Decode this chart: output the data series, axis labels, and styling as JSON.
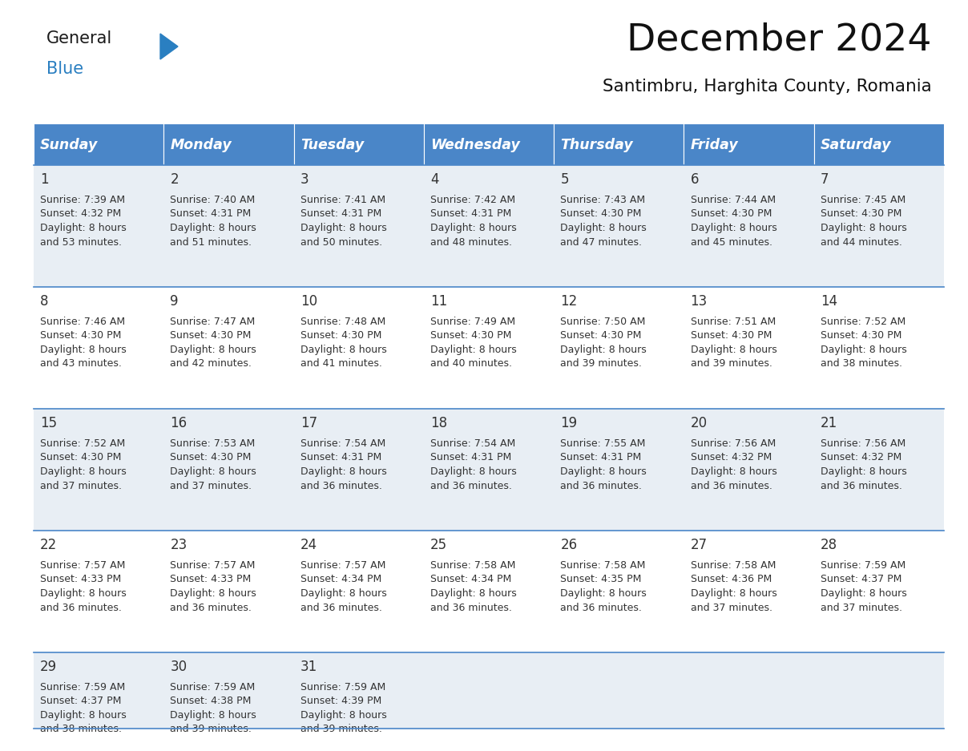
{
  "title": "December 2024",
  "subtitle": "Santimbru, Harghita County, Romania",
  "days_of_week": [
    "Sunday",
    "Monday",
    "Tuesday",
    "Wednesday",
    "Thursday",
    "Friday",
    "Saturday"
  ],
  "header_bg": "#4a86c8",
  "header_text": "#ffffff",
  "row_bg_odd": "#e8eef4",
  "row_bg_even": "#ffffff",
  "cell_border": "#4a86c8",
  "text_color": "#333333",
  "calendar_data": [
    [
      {
        "day": 1,
        "sunrise": "7:39 AM",
        "sunset": "4:32 PM",
        "daylight_hrs": "8 hours",
        "daylight_min": "and 53 minutes."
      },
      {
        "day": 2,
        "sunrise": "7:40 AM",
        "sunset": "4:31 PM",
        "daylight_hrs": "8 hours",
        "daylight_min": "and 51 minutes."
      },
      {
        "day": 3,
        "sunrise": "7:41 AM",
        "sunset": "4:31 PM",
        "daylight_hrs": "8 hours",
        "daylight_min": "and 50 minutes."
      },
      {
        "day": 4,
        "sunrise": "7:42 AM",
        "sunset": "4:31 PM",
        "daylight_hrs": "8 hours",
        "daylight_min": "and 48 minutes."
      },
      {
        "day": 5,
        "sunrise": "7:43 AM",
        "sunset": "4:30 PM",
        "daylight_hrs": "8 hours",
        "daylight_min": "and 47 minutes."
      },
      {
        "day": 6,
        "sunrise": "7:44 AM",
        "sunset": "4:30 PM",
        "daylight_hrs": "8 hours",
        "daylight_min": "and 45 minutes."
      },
      {
        "day": 7,
        "sunrise": "7:45 AM",
        "sunset": "4:30 PM",
        "daylight_hrs": "8 hours",
        "daylight_min": "and 44 minutes."
      }
    ],
    [
      {
        "day": 8,
        "sunrise": "7:46 AM",
        "sunset": "4:30 PM",
        "daylight_hrs": "8 hours",
        "daylight_min": "and 43 minutes."
      },
      {
        "day": 9,
        "sunrise": "7:47 AM",
        "sunset": "4:30 PM",
        "daylight_hrs": "8 hours",
        "daylight_min": "and 42 minutes."
      },
      {
        "day": 10,
        "sunrise": "7:48 AM",
        "sunset": "4:30 PM",
        "daylight_hrs": "8 hours",
        "daylight_min": "and 41 minutes."
      },
      {
        "day": 11,
        "sunrise": "7:49 AM",
        "sunset": "4:30 PM",
        "daylight_hrs": "8 hours",
        "daylight_min": "and 40 minutes."
      },
      {
        "day": 12,
        "sunrise": "7:50 AM",
        "sunset": "4:30 PM",
        "daylight_hrs": "8 hours",
        "daylight_min": "and 39 minutes."
      },
      {
        "day": 13,
        "sunrise": "7:51 AM",
        "sunset": "4:30 PM",
        "daylight_hrs": "8 hours",
        "daylight_min": "and 39 minutes."
      },
      {
        "day": 14,
        "sunrise": "7:52 AM",
        "sunset": "4:30 PM",
        "daylight_hrs": "8 hours",
        "daylight_min": "and 38 minutes."
      }
    ],
    [
      {
        "day": 15,
        "sunrise": "7:52 AM",
        "sunset": "4:30 PM",
        "daylight_hrs": "8 hours",
        "daylight_min": "and 37 minutes."
      },
      {
        "day": 16,
        "sunrise": "7:53 AM",
        "sunset": "4:30 PM",
        "daylight_hrs": "8 hours",
        "daylight_min": "and 37 minutes."
      },
      {
        "day": 17,
        "sunrise": "7:54 AM",
        "sunset": "4:31 PM",
        "daylight_hrs": "8 hours",
        "daylight_min": "and 36 minutes."
      },
      {
        "day": 18,
        "sunrise": "7:54 AM",
        "sunset": "4:31 PM",
        "daylight_hrs": "8 hours",
        "daylight_min": "and 36 minutes."
      },
      {
        "day": 19,
        "sunrise": "7:55 AM",
        "sunset": "4:31 PM",
        "daylight_hrs": "8 hours",
        "daylight_min": "and 36 minutes."
      },
      {
        "day": 20,
        "sunrise": "7:56 AM",
        "sunset": "4:32 PM",
        "daylight_hrs": "8 hours",
        "daylight_min": "and 36 minutes."
      },
      {
        "day": 21,
        "sunrise": "7:56 AM",
        "sunset": "4:32 PM",
        "daylight_hrs": "8 hours",
        "daylight_min": "and 36 minutes."
      }
    ],
    [
      {
        "day": 22,
        "sunrise": "7:57 AM",
        "sunset": "4:33 PM",
        "daylight_hrs": "8 hours",
        "daylight_min": "and 36 minutes."
      },
      {
        "day": 23,
        "sunrise": "7:57 AM",
        "sunset": "4:33 PM",
        "daylight_hrs": "8 hours",
        "daylight_min": "and 36 minutes."
      },
      {
        "day": 24,
        "sunrise": "7:57 AM",
        "sunset": "4:34 PM",
        "daylight_hrs": "8 hours",
        "daylight_min": "and 36 minutes."
      },
      {
        "day": 25,
        "sunrise": "7:58 AM",
        "sunset": "4:34 PM",
        "daylight_hrs": "8 hours",
        "daylight_min": "and 36 minutes."
      },
      {
        "day": 26,
        "sunrise": "7:58 AM",
        "sunset": "4:35 PM",
        "daylight_hrs": "8 hours",
        "daylight_min": "and 36 minutes."
      },
      {
        "day": 27,
        "sunrise": "7:58 AM",
        "sunset": "4:36 PM",
        "daylight_hrs": "8 hours",
        "daylight_min": "and 37 minutes."
      },
      {
        "day": 28,
        "sunrise": "7:59 AM",
        "sunset": "4:37 PM",
        "daylight_hrs": "8 hours",
        "daylight_min": "and 37 minutes."
      }
    ],
    [
      {
        "day": 29,
        "sunrise": "7:59 AM",
        "sunset": "4:37 PM",
        "daylight_hrs": "8 hours",
        "daylight_min": "and 38 minutes."
      },
      {
        "day": 30,
        "sunrise": "7:59 AM",
        "sunset": "4:38 PM",
        "daylight_hrs": "8 hours",
        "daylight_min": "and 39 minutes."
      },
      {
        "day": 31,
        "sunrise": "7:59 AM",
        "sunset": "4:39 PM",
        "daylight_hrs": "8 hours",
        "daylight_min": "and 39 minutes."
      },
      null,
      null,
      null,
      null
    ]
  ],
  "logo_general_color": "#1a1a1a",
  "logo_blue_color": "#2a7fc1",
  "logo_triangle_color": "#2a7fc1"
}
